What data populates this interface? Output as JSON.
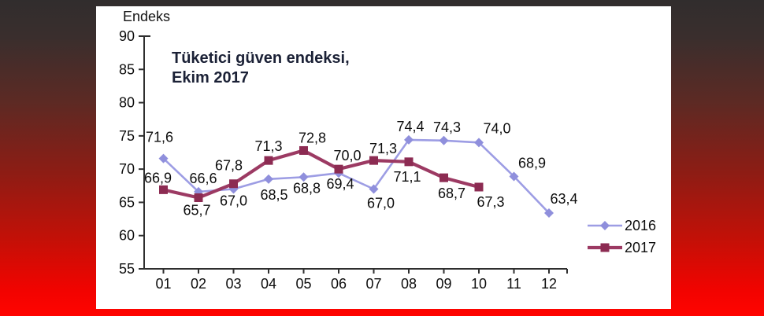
{
  "window": {
    "background_colors": {
      "top": "#312d2d",
      "middle": "#8e1c14",
      "bottom": "#ff0400"
    },
    "panel_color": "#ffffff"
  },
  "chart_data": {
    "type": "line",
    "title": "Tüketici güven endeksi, Ekim 2017",
    "title_lines": [
      "Tüketici güven endeksi,",
      "Ekim 2017"
    ],
    "ylabel": "Endeks",
    "xlabel": "",
    "categories": [
      "01",
      "02",
      "03",
      "04",
      "05",
      "06",
      "07",
      "08",
      "09",
      "10",
      "11",
      "12"
    ],
    "ylim": [
      55,
      90
    ],
    "ytick_step": 5,
    "yticks": [
      55,
      60,
      65,
      70,
      75,
      80,
      85,
      90
    ],
    "grid": false,
    "legend_position": "right-middle",
    "axis_color": "#2f2f2f",
    "label_color": "#0d0d0d",
    "title_color": "#1b2136",
    "series": [
      {
        "name": "2016",
        "color": "#9d9de4",
        "marker_color": "#8f8fdc",
        "marker": "diamond",
        "values": [
          71.6,
          66.6,
          67.0,
          68.5,
          68.8,
          69.4,
          67.0,
          74.4,
          74.3,
          74.0,
          68.9,
          63.4
        ],
        "labels": [
          "71,6",
          "66,6",
          "67,0",
          "68,5",
          "68,8",
          "69,4",
          "67,0",
          "74,4",
          "74,3",
          "74,0",
          "68,9",
          "63,4"
        ],
        "label_offsets": [
          [
            -5,
            -27
          ],
          [
            6,
            -17
          ],
          [
            0,
            15
          ],
          [
            7,
            20
          ],
          [
            4,
            14
          ],
          [
            2,
            14
          ],
          [
            9,
            18
          ],
          [
            2,
            -17
          ],
          [
            4,
            -17
          ],
          [
            23,
            -18
          ],
          [
            23,
            -17
          ],
          [
            19,
            -18
          ]
        ]
      },
      {
        "name": "2017",
        "color": "#9c3a63",
        "marker_color": "#8c2b52",
        "marker": "square",
        "values": [
          66.9,
          65.7,
          67.8,
          71.3,
          72.8,
          70.0,
          71.3,
          71.1,
          68.7,
          67.3
        ],
        "labels": [
          "66,9",
          "65,7",
          "67,8",
          "71,3",
          "72,8",
          "70,0",
          "71,3",
          "71,1",
          "68,7",
          "67,3"
        ],
        "label_offsets": [
          [
            -7,
            -15
          ],
          [
            -2,
            16
          ],
          [
            -6,
            -23
          ],
          [
            0,
            -18
          ],
          [
            11,
            -16
          ],
          [
            11,
            -17
          ],
          [
            12,
            -15
          ],
          [
            -2,
            19
          ],
          [
            10,
            20
          ],
          [
            15,
            19
          ]
        ]
      }
    ]
  }
}
